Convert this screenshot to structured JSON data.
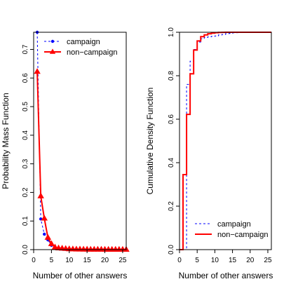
{
  "chart_data": [
    {
      "type": "line",
      "xlabel": "Number of other answers",
      "ylabel": "Probability Mass Function",
      "xlim": [
        0,
        26
      ],
      "ylim": [
        0,
        0.76
      ],
      "xticks": [
        0,
        5,
        10,
        15,
        20,
        25
      ],
      "xtick_labels": [
        "0",
        "5",
        "10",
        "15",
        "20",
        "25"
      ],
      "yticks": [
        0.0,
        0.1,
        0.2,
        0.3,
        0.4,
        0.5,
        0.6,
        0.7
      ],
      "ytick_labels": [
        "0.0",
        "0.1",
        "0.2",
        "0.3",
        "0.4",
        "0.5",
        "0.6",
        "0.7"
      ],
      "grid": false,
      "legend_position": "top-right",
      "series": [
        {
          "name": "campaign",
          "color": "#0000ff",
          "line_style": "dashed",
          "marker": "circle",
          "x": [
            1,
            2,
            3,
            4,
            5,
            6,
            7,
            8,
            9,
            10,
            11,
            12,
            13,
            14,
            15,
            16,
            17,
            18,
            19,
            20,
            21,
            22,
            23,
            24,
            25,
            26
          ],
          "y": [
            0.76,
            0.107,
            0.054,
            0.034,
            0.015,
            0.006,
            0.003,
            0.002,
            0.001,
            0.001,
            0.0005,
            0.0004,
            0.0003,
            0.0002,
            0.0002,
            0.0001,
            0.0001,
            0.0001,
            0.0001,
            0,
            0,
            0,
            0,
            0,
            0,
            0
          ]
        },
        {
          "name": "non−campaign",
          "color": "#ff0000",
          "line_style": "solid",
          "marker": "triangle",
          "x": [
            1,
            2,
            3,
            4,
            5,
            6,
            7,
            8,
            9,
            10,
            11,
            12,
            13,
            14,
            15,
            16,
            17,
            18,
            19,
            20,
            21,
            22,
            23,
            24,
            25,
            26
          ],
          "y": [
            0.622,
            0.187,
            0.109,
            0.042,
            0.02,
            0.008,
            0.005,
            0.004,
            0.003,
            0.002,
            0.0015,
            0.001,
            0.001,
            0.0008,
            0.0006,
            0.0005,
            0.0004,
            0.0003,
            0.0003,
            0.0002,
            0.0002,
            0.0002,
            0.0001,
            0.0001,
            0.0001,
            0.0001
          ]
        }
      ]
    },
    {
      "type": "line",
      "xlabel": "Number of other answers",
      "ylabel": "Cumulative Density Function",
      "xlim": [
        0,
        26
      ],
      "ylim": [
        0,
        1.0
      ],
      "xticks": [
        0,
        5,
        10,
        15,
        20,
        25
      ],
      "xtick_labels": [
        "0",
        "5",
        "10",
        "15",
        "20",
        "25"
      ],
      "yticks": [
        0.0,
        0.2,
        0.4,
        0.6,
        0.8,
        1.0
      ],
      "ytick_labels": [
        "0.0",
        "0.2",
        "0.4",
        "0.6",
        "0.8",
        "1.0"
      ],
      "reference_lines_y": [
        0,
        1
      ],
      "grid": false,
      "legend_position": "bottom-right",
      "series": [
        {
          "name": "campaign",
          "color": "#0000ff",
          "line_style": "dashed",
          "step": true,
          "x": [
            0,
            1,
            2,
            3,
            4,
            5,
            6,
            7,
            8,
            9,
            10,
            11,
            12,
            13,
            14,
            15,
            16,
            17,
            18,
            19,
            20,
            21,
            22,
            23,
            24,
            25,
            26
          ],
          "y": [
            0,
            0.0,
            0.76,
            0.867,
            0.921,
            0.955,
            0.97,
            0.976,
            0.979,
            0.981,
            0.983,
            0.9875,
            0.99,
            0.993,
            0.995,
            0.997,
            0.998,
            0.999,
            0.9995,
            0.9998,
            1,
            1,
            1,
            1,
            1,
            1,
            1
          ]
        },
        {
          "name": "non−campaign",
          "color": "#ff0000",
          "line_style": "solid",
          "step": true,
          "x": [
            0,
            1,
            2,
            3,
            4,
            5,
            6,
            7,
            8,
            9,
            10,
            11,
            12,
            13,
            14,
            15,
            16,
            17,
            18,
            19,
            20,
            21,
            22,
            23,
            24,
            25,
            26
          ],
          "y": [
            0,
            0.345,
            0.622,
            0.809,
            0.918,
            0.96,
            0.98,
            0.988,
            0.993,
            0.996,
            0.998,
            0.999,
            0.9995,
            0.9998,
            1,
            1,
            1,
            1,
            1,
            1,
            1,
            1,
            1,
            1,
            1,
            1,
            1
          ]
        }
      ]
    }
  ]
}
